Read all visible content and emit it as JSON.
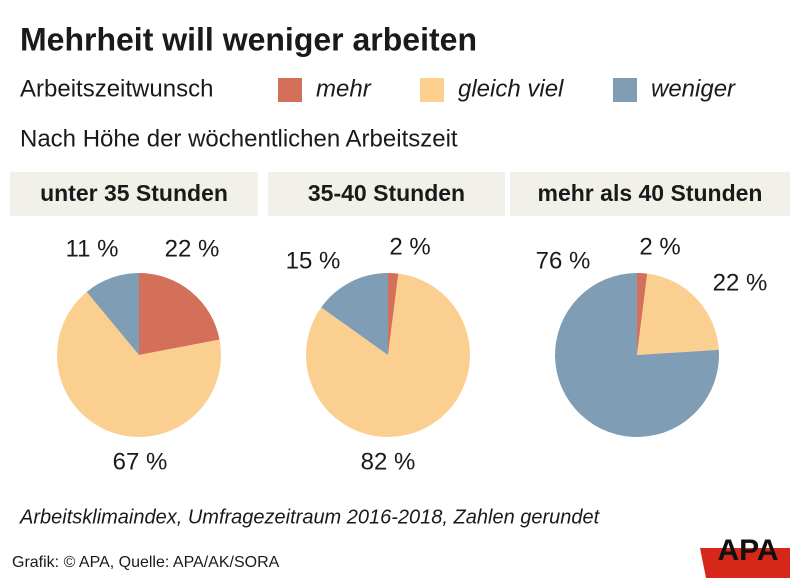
{
  "title": "Mehrheit will weniger arbeiten",
  "legend_title": "Arbeitszeitwunsch",
  "subtitle": "Nach Höhe der wöchentlichen Arbeitszeit",
  "note": "Arbeitsklimaindex, Umfragezeitraum 2016-2018, Zahlen gerundet",
  "source": "Grafik: © APA, Quelle: APA/AK/SORA",
  "logo": "APA",
  "chart_data": [
    {
      "type": "pie",
      "title": "unter 35 Stunden",
      "categories": [
        "mehr",
        "gleich viel",
        "weniger"
      ],
      "values": [
        22,
        67,
        11
      ],
      "value_labels": [
        "22 %",
        "67 %",
        "11 %"
      ],
      "colors": [
        "#d4705a",
        "#fbcf8f",
        "#7f9db5"
      ]
    },
    {
      "type": "pie",
      "title": "35-40 Stunden",
      "categories": [
        "mehr",
        "gleich viel",
        "weniger"
      ],
      "values": [
        2,
        82,
        15
      ],
      "value_labels": [
        "2 %",
        "82 %",
        "15 %"
      ],
      "colors": [
        "#d4705a",
        "#fbcf8f",
        "#7f9db5"
      ]
    },
    {
      "type": "pie",
      "title": "mehr als 40 Stunden",
      "categories": [
        "mehr",
        "gleich viel",
        "weniger"
      ],
      "values": [
        2,
        22,
        76
      ],
      "value_labels": [
        "2 %",
        "22 %",
        "76 %"
      ],
      "colors": [
        "#d4705a",
        "#fbcf8f",
        "#7f9db5"
      ]
    }
  ]
}
